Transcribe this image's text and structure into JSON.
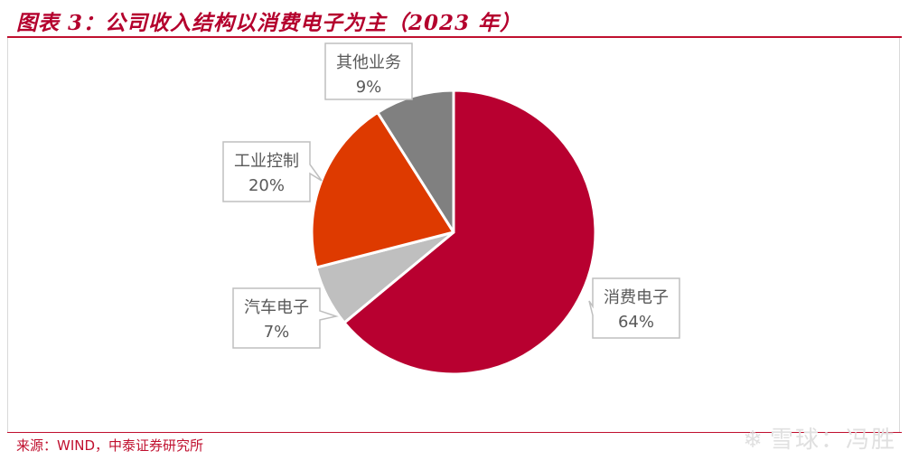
{
  "title": "图表 3：公司收入结构以消费电子为主（2023 年）",
  "source": "来源：WIND，中泰证券研究所",
  "watermark": {
    "icon": "snowball-icon",
    "text": "雪球：冯胜"
  },
  "colors": {
    "accent": "#c0102f"
  },
  "chart_data": {
    "type": "pie",
    "title": "",
    "slices": [
      {
        "label": "消费电子",
        "value": 64,
        "value_label": "64%",
        "color": "#b80030"
      },
      {
        "label": "汽车电子",
        "value": 7,
        "value_label": "7%",
        "color": "#bfbfbf"
      },
      {
        "label": "工业控制",
        "value": 20,
        "value_label": "20%",
        "color": "#de3a00"
      },
      {
        "label": "其他业务",
        "value": 9,
        "value_label": "9%",
        "color": "#808080"
      }
    ],
    "start": "12 o'clock",
    "direction": "clockwise",
    "legend": "none (callout labels)"
  }
}
